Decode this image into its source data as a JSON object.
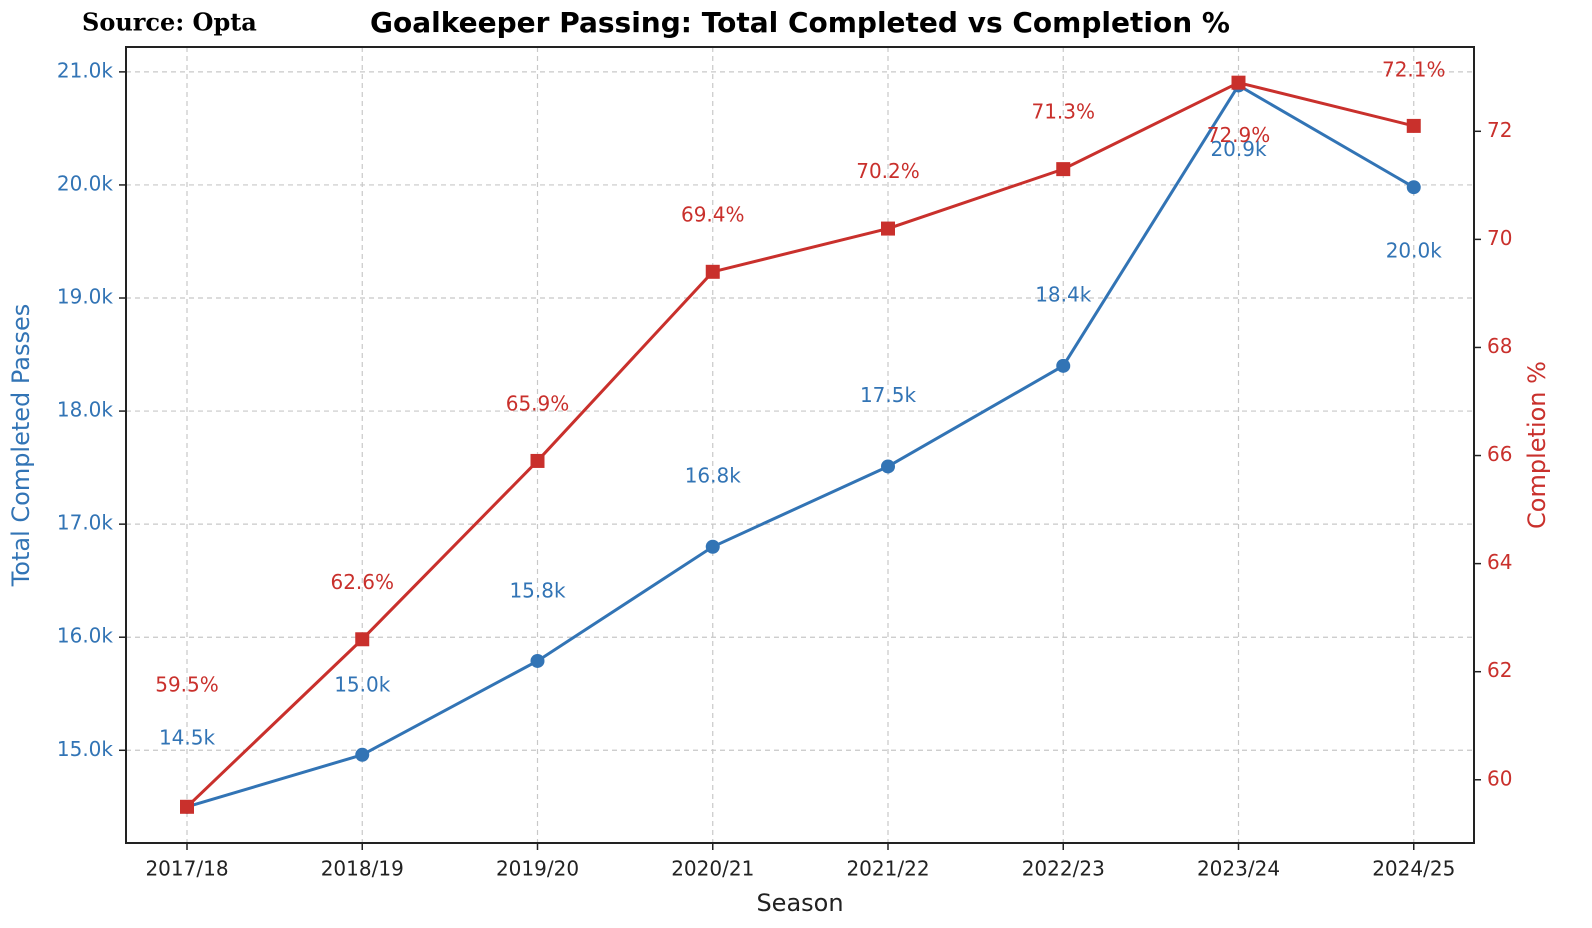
{
  "chart_data": {
    "type": "line",
    "source": "Source: Opta",
    "title": "Goalkeeper Passing: Total Completed vs Completion %",
    "xlabel": "Season",
    "ylabel": "Total Completed Passes",
    "y2label": "Completion %",
    "categories": [
      "2017/18",
      "2018/19",
      "2019/20",
      "2020/21",
      "2021/22",
      "2022/23",
      "2023/24",
      "2024/25"
    ],
    "series": [
      {
        "name": "Total Completed Passes",
        "color": "#3274b5",
        "marker": "circle",
        "values": [
          14500,
          14960,
          15790,
          16800,
          17510,
          18400,
          20880,
          19980
        ],
        "value_labels": [
          "14.5k",
          "15.0k",
          "15.8k",
          "16.8k",
          "17.5k",
          "18.4k",
          "20.9k",
          "20.0k"
        ]
      },
      {
        "name": "Completion %",
        "color": "#c9302c",
        "marker": "square",
        "axis": "y2",
        "values": [
          59.5,
          62.6,
          65.9,
          69.4,
          70.2,
          71.3,
          72.9,
          72.1
        ],
        "value_labels": [
          "59.5%",
          "62.6%",
          "65.9%",
          "69.4%",
          "70.2%",
          "71.3%",
          "72.9%",
          "72.1%"
        ]
      }
    ],
    "ylim": [
      14180,
      21220
    ],
    "yticks": [
      {
        "value": 15000,
        "label": "15.0k"
      },
      {
        "value": 16000,
        "label": "16.0k"
      },
      {
        "value": 17000,
        "label": "17.0k"
      },
      {
        "value": 18000,
        "label": "18.0k"
      },
      {
        "value": 19000,
        "label": "19.0k"
      },
      {
        "value": 20000,
        "label": "20.0k"
      },
      {
        "value": 21000,
        "label": "21.0k"
      }
    ],
    "y2lim": [
      58.83,
      73.56
    ],
    "y2ticks": [
      60,
      62,
      64,
      66,
      68,
      70,
      72
    ],
    "grid": true
  }
}
